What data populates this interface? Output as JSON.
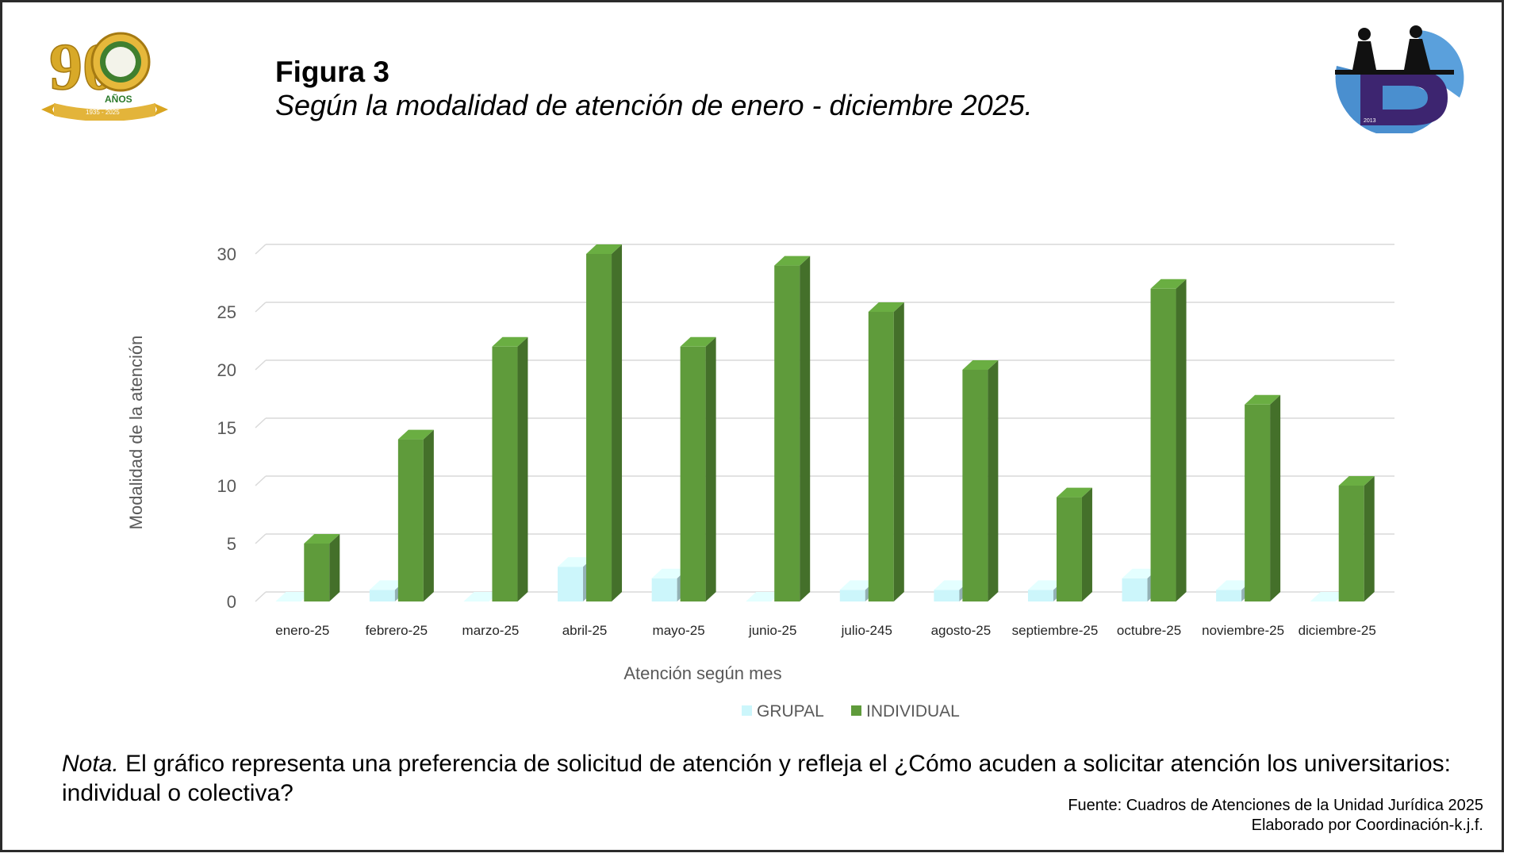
{
  "header": {
    "figure_label": "Figura 3",
    "figure_title": "Según la modalidad de atención de enero - diciembre 2025."
  },
  "logos": {
    "left": {
      "number": "90",
      "text": "AÑOS",
      "years": "1935 - 2025"
    },
    "right": {
      "caption": "2013"
    }
  },
  "chart_data": {
    "type": "bar",
    "categories": [
      "enero-25",
      "febrero-25",
      "marzo-25",
      "abril-25",
      "mayo-25",
      "junio-25",
      "julio-245",
      "agosto-25",
      "septiembre-25",
      "octubre-25",
      "noviembre-25",
      "diciembre-25"
    ],
    "series": [
      {
        "name": "GRUPAL",
        "color": "#ccf6fb",
        "values": [
          0,
          1,
          0,
          3,
          2,
          0,
          1,
          1,
          1,
          2,
          1,
          0
        ]
      },
      {
        "name": "INDIVIDUAL",
        "color": "#5f9b3b",
        "values": [
          5,
          14,
          22,
          30,
          22,
          29,
          25,
          20,
          9,
          27,
          17,
          10
        ]
      }
    ],
    "xlabel": "Atención según mes",
    "ylabel": "Modalidad de la atención",
    "ylim": [
      0,
      30
    ],
    "yticks": [
      0,
      5,
      10,
      15,
      20,
      25,
      30
    ],
    "grid": true,
    "legend": "bottom",
    "three_d": true
  },
  "note": {
    "label": "Nota.",
    "text": "El gráfico representa una preferencia de solicitud de atención  y refleja el ¿Cómo acuden a solicitar atención los universitarios: individual o colectiva?"
  },
  "source": {
    "line1": "Fuente: Cuadros de Atenciones de la Unidad Jurídica 2025",
    "line2": "Elaborado por Coordinación-k.j.f."
  }
}
